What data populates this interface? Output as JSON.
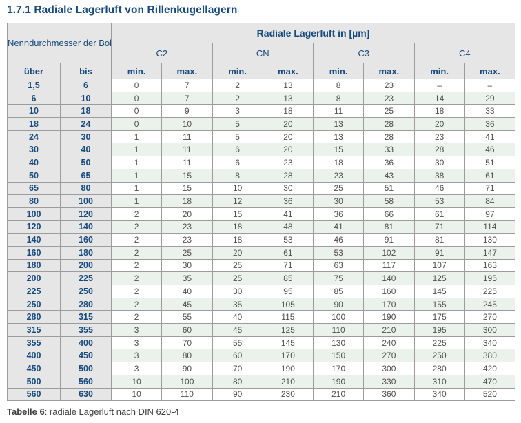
{
  "page": {
    "title": "1.7.1 Radiale Lagerluft von Rillenkugellagern",
    "caption_label": "Tabelle 6",
    "caption_rest": ": radiale Lagerluft nach DIN 620-4"
  },
  "table": {
    "header": {
      "bore_label": "Nenndurchmesser der Bohrung d [mm]",
      "clearance_label": "Radiale Lagerluft in [µm]",
      "classes": {
        "c2": "C2",
        "cn": "CN",
        "c3": "C3",
        "c4": "C4"
      },
      "sub_min": "min.",
      "sub_max": "max.",
      "over": "über",
      "to": "bis"
    },
    "rows": [
      {
        "ueber": "1,5",
        "bis": "6",
        "values": [
          "0",
          "7",
          "2",
          "13",
          "8",
          "23",
          "–",
          "–"
        ]
      },
      {
        "ueber": "6",
        "bis": "10",
        "values": [
          "0",
          "7",
          "2",
          "13",
          "8",
          "23",
          "14",
          "29"
        ]
      },
      {
        "ueber": "10",
        "bis": "18",
        "values": [
          "0",
          "9",
          "3",
          "18",
          "11",
          "25",
          "18",
          "33"
        ]
      },
      {
        "ueber": "18",
        "bis": "24",
        "values": [
          "0",
          "10",
          "5",
          "20",
          "13",
          "28",
          "20",
          "36"
        ]
      },
      {
        "ueber": "24",
        "bis": "30",
        "values": [
          "1",
          "11",
          "5",
          "20",
          "13",
          "28",
          "23",
          "41"
        ]
      },
      {
        "ueber": "30",
        "bis": "40",
        "values": [
          "1",
          "11",
          "6",
          "20",
          "15",
          "33",
          "28",
          "46"
        ]
      },
      {
        "ueber": "40",
        "bis": "50",
        "values": [
          "1",
          "11",
          "6",
          "23",
          "18",
          "36",
          "30",
          "51"
        ]
      },
      {
        "ueber": "50",
        "bis": "65",
        "values": [
          "1",
          "15",
          "8",
          "28",
          "23",
          "43",
          "38",
          "61"
        ]
      },
      {
        "ueber": "65",
        "bis": "80",
        "values": [
          "1",
          "15",
          "10",
          "30",
          "25",
          "51",
          "46",
          "71"
        ]
      },
      {
        "ueber": "80",
        "bis": "100",
        "values": [
          "1",
          "18",
          "12",
          "36",
          "30",
          "58",
          "53",
          "84"
        ]
      },
      {
        "ueber": "100",
        "bis": "120",
        "values": [
          "2",
          "20",
          "15",
          "41",
          "36",
          "66",
          "61",
          "97"
        ]
      },
      {
        "ueber": "120",
        "bis": "140",
        "values": [
          "2",
          "23",
          "18",
          "48",
          "41",
          "81",
          "71",
          "114"
        ]
      },
      {
        "ueber": "140",
        "bis": "160",
        "values": [
          "2",
          "23",
          "18",
          "53",
          "46",
          "91",
          "81",
          "130"
        ]
      },
      {
        "ueber": "160",
        "bis": "180",
        "values": [
          "2",
          "25",
          "20",
          "61",
          "53",
          "102",
          "91",
          "147"
        ]
      },
      {
        "ueber": "180",
        "bis": "200",
        "values": [
          "2",
          "30",
          "25",
          "71",
          "63",
          "117",
          "107",
          "163"
        ]
      },
      {
        "ueber": "200",
        "bis": "225",
        "values": [
          "2",
          "35",
          "25",
          "85",
          "75",
          "140",
          "125",
          "195"
        ]
      },
      {
        "ueber": "225",
        "bis": "250",
        "values": [
          "2",
          "40",
          "30",
          "95",
          "85",
          "160",
          "145",
          "225"
        ]
      },
      {
        "ueber": "250",
        "bis": "280",
        "values": [
          "2",
          "45",
          "35",
          "105",
          "90",
          "170",
          "155",
          "245"
        ]
      },
      {
        "ueber": "280",
        "bis": "315",
        "values": [
          "2",
          "55",
          "40",
          "115",
          "100",
          "190",
          "175",
          "270"
        ]
      },
      {
        "ueber": "315",
        "bis": "355",
        "values": [
          "3",
          "60",
          "45",
          "125",
          "110",
          "210",
          "195",
          "300"
        ]
      },
      {
        "ueber": "355",
        "bis": "400",
        "values": [
          "3",
          "70",
          "55",
          "145",
          "130",
          "240",
          "225",
          "340"
        ]
      },
      {
        "ueber": "400",
        "bis": "450",
        "values": [
          "3",
          "80",
          "60",
          "170",
          "150",
          "270",
          "250",
          "380"
        ]
      },
      {
        "ueber": "450",
        "bis": "500",
        "values": [
          "3",
          "90",
          "70",
          "190",
          "170",
          "300",
          "280",
          "420"
        ]
      },
      {
        "ueber": "500",
        "bis": "560",
        "values": [
          "10",
          "100",
          "80",
          "210",
          "190",
          "330",
          "310",
          "470"
        ]
      },
      {
        "ueber": "560",
        "bis": "630",
        "values": [
          "10",
          "110",
          "90",
          "230",
          "210",
          "360",
          "340",
          "520"
        ]
      }
    ]
  },
  "colors": {
    "heading_navy": "#16497d",
    "header_bg": "#e6e6e6",
    "alt_row_green": "#ebf2eb",
    "data_text": "#4f4f4f",
    "grid_line": "#9c9c9c"
  }
}
